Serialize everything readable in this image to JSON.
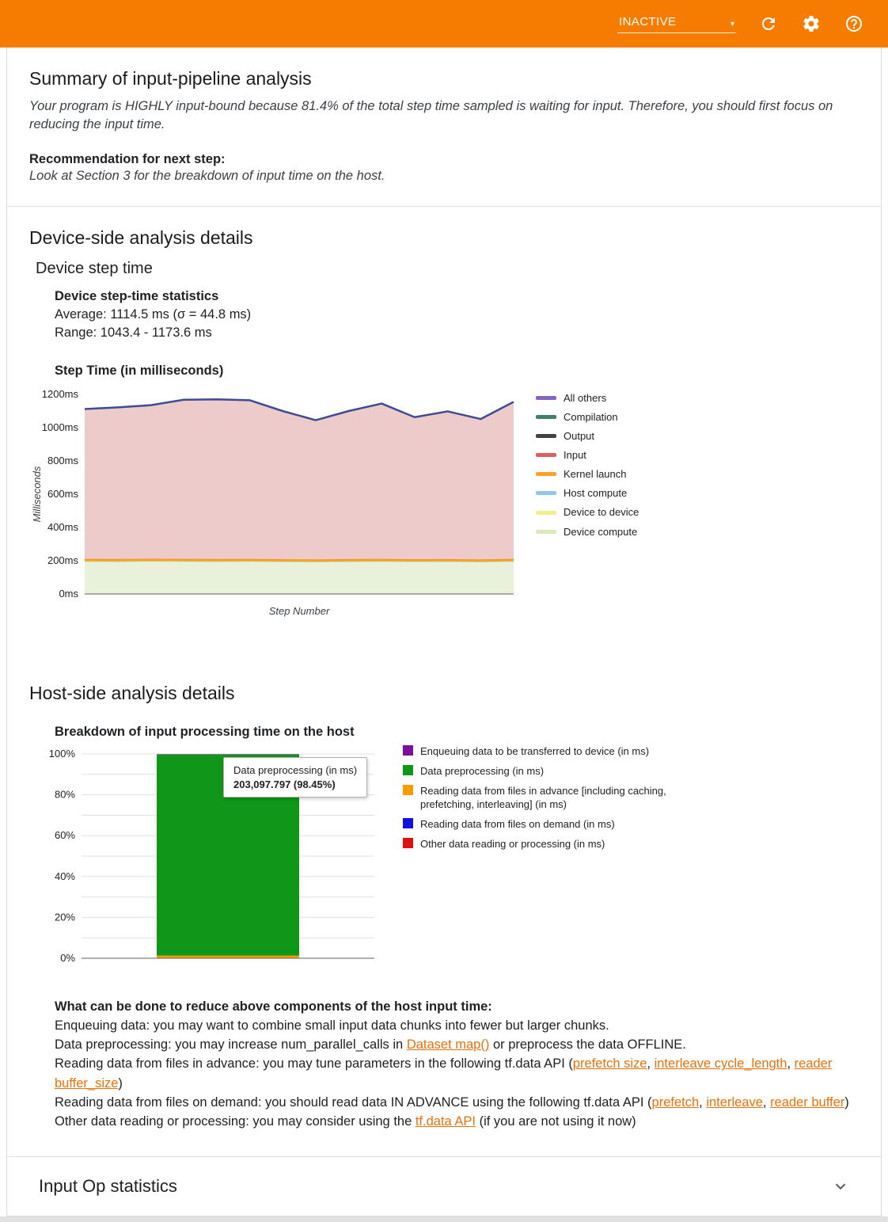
{
  "colors": {
    "accent": "#f57c00",
    "link": "#e8710a"
  },
  "header": {
    "status_label": "INACTIVE",
    "icons": [
      "dropdown-caret-icon",
      "refresh-icon",
      "settings-icon",
      "help-icon"
    ]
  },
  "summary": {
    "title": "Summary of input-pipeline analysis",
    "body": "Your program is HIGHLY input-bound because 81.4% of the total step time sampled is waiting for input. Therefore, you should first focus on reducing the input time.",
    "recommendation_label": "Recommendation for next step:",
    "recommendation": "Look at Section 3 for the breakdown of input time on the host."
  },
  "device_section": {
    "title": "Device-side analysis details",
    "subtitle": "Device step time",
    "stats_title": "Device step-time statistics",
    "average": "Average: 1114.5 ms (σ = 44.8 ms)",
    "range": "Range: 1043.4 - 1173.6 ms"
  },
  "host_section": {
    "title": "Host-side analysis details",
    "advice_title": "What can be done to reduce above components of the host input time:",
    "advice": [
      [
        {
          "t": "Enqueuing data: you may want to combine small input data chunks into fewer but larger chunks."
        }
      ],
      [
        {
          "t": "Data preprocessing: you may increase num_parallel_calls in "
        },
        {
          "t": "Dataset map()",
          "link": true
        },
        {
          "t": " or preprocess the data OFFLINE."
        }
      ],
      [
        {
          "t": "Reading data from files in advance: you may tune parameters in the following tf.data API ("
        },
        {
          "t": "prefetch size",
          "link": true
        },
        {
          "t": ", "
        },
        {
          "t": "interleave cycle_length",
          "link": true
        },
        {
          "t": ", "
        },
        {
          "t": "reader buffer_size",
          "link": true
        },
        {
          "t": ")"
        }
      ],
      [
        {
          "t": "Reading data from files on demand: you should read data IN ADVANCE using the following tf.data API ("
        },
        {
          "t": "prefetch",
          "link": true
        },
        {
          "t": ", "
        },
        {
          "t": "interleave",
          "link": true
        },
        {
          "t": ", "
        },
        {
          "t": "reader buffer",
          "link": true
        },
        {
          "t": ")"
        }
      ],
      [
        {
          "t": "Other data reading or processing: you may consider using the "
        },
        {
          "t": "tf.data API",
          "link": true
        },
        {
          "t": " (if you are not using it now)"
        }
      ]
    ]
  },
  "input_op": {
    "title": "Input Op statistics"
  },
  "chart_data": [
    {
      "type": "area",
      "title": "Step Time (in milliseconds)",
      "xlabel": "Step Number",
      "ylabel": "Milliseconds",
      "ylim": [
        0,
        1200
      ],
      "ytick_step": 200,
      "ytick_suffix": "ms",
      "yticks": [
        "0ms",
        "200ms",
        "400ms",
        "600ms",
        "800ms",
        "1000ms",
        "1200ms"
      ],
      "grid": false,
      "legend_position": "right",
      "x": [
        1,
        2,
        3,
        4,
        5,
        6,
        7,
        8,
        9,
        10,
        11,
        12,
        13,
        14
      ],
      "series": [
        {
          "name": "Device compute",
          "fill": "#e9f1da",
          "stroke": "#c3d99c",
          "stroke_width": 1.5,
          "values": [
            197,
            196,
            198,
            197,
            196,
            197,
            195,
            194,
            196,
            197,
            195,
            196,
            194,
            197
          ]
        },
        {
          "name": "Device to device",
          "fill": "#fff9c4",
          "values": [
            0,
            0,
            0,
            0,
            0,
            0,
            0,
            0,
            0,
            0,
            0,
            0,
            0,
            0
          ]
        },
        {
          "name": "Host compute",
          "fill": "#bbdefb",
          "values": [
            0,
            0,
            0,
            0,
            0,
            0,
            0,
            0,
            0,
            0,
            0,
            0,
            0,
            0
          ]
        },
        {
          "name": "Kernel launch",
          "fill": "#f5a32b",
          "stroke": "#ec8f10",
          "stroke_width": 1,
          "values": [
            14,
            14,
            14,
            14,
            14,
            14,
            14,
            14,
            14,
            14,
            14,
            14,
            14,
            14
          ]
        },
        {
          "name": "Input",
          "fill": "#edcbca",
          "values": [
            895,
            906,
            917,
            951,
            954,
            948,
            885,
            831,
            884,
            928,
            848,
            882,
            838,
            938
          ]
        },
        {
          "name": "Output",
          "fill": "#9e9e9e",
          "values": [
            0,
            0,
            0,
            0,
            0,
            0,
            0,
            0,
            0,
            0,
            0,
            0,
            0,
            0
          ]
        },
        {
          "name": "Compilation",
          "fill": "#80cbc4",
          "values": [
            0,
            0,
            0,
            0,
            0,
            0,
            0,
            0,
            0,
            0,
            0,
            0,
            0,
            0
          ]
        },
        {
          "name": "All others",
          "fill": "#b7bce0",
          "stroke": "#3f4c93",
          "stroke_width": 2.5,
          "values": [
            6,
            6,
            6,
            6,
            6,
            6,
            6,
            6,
            6,
            6,
            6,
            6,
            6,
            6
          ]
        }
      ],
      "legend": [
        {
          "label": "All others",
          "color": "#8465c3"
        },
        {
          "label": "Compilation",
          "color": "#3e7f6d"
        },
        {
          "label": "Output",
          "color": "#424242"
        },
        {
          "label": "Input",
          "color": "#dd5f5f"
        },
        {
          "label": "Kernel launch",
          "color": "#f5a32b"
        },
        {
          "label": "Host compute",
          "color": "#90c7f0"
        },
        {
          "label": "Device to device",
          "color": "#f3ee8a"
        },
        {
          "label": "Device compute",
          "color": "#d9e9b8"
        }
      ]
    },
    {
      "type": "bar",
      "title": "Breakdown of input processing time on the host",
      "ylim": [
        0,
        100
      ],
      "ytick_step": 10,
      "label_step": 20,
      "ytick_suffix": "%",
      "yticks": [
        "0%",
        "20%",
        "40%",
        "60%",
        "80%",
        "100%"
      ],
      "grid": true,
      "legend_position": "right",
      "bar": {
        "segments_bottom_to_top": [
          {
            "name": "Reading data from files in advance [including caching, prefetching, interleaving] (in ms)",
            "color": "#ff9900",
            "value": 1.3
          },
          {
            "name": "Data preprocessing (in ms)",
            "color": "#109618",
            "value": 98.45
          },
          {
            "name": "Enqueuing data to be transferred to device (in ms)",
            "color": "#7e0f9c",
            "value": 0.15
          }
        ]
      },
      "tooltip": {
        "title": "Data preprocessing (in ms)",
        "value": "203,097.797 (98.45%)"
      },
      "legend": [
        {
          "label": "Enqueuing data to be transferred to device (in ms)",
          "color": "#7e0f9c"
        },
        {
          "label": "Data preprocessing (in ms)",
          "color": "#109618"
        },
        {
          "label": "Reading data from files in advance [including caching, prefetching, interleaving] (in ms)",
          "color": "#ff9900"
        },
        {
          "label": "Reading data from files on demand (in ms)",
          "color": "#1010e0"
        },
        {
          "label": "Other data reading or processing (in ms)",
          "color": "#e01010"
        }
      ]
    }
  ]
}
